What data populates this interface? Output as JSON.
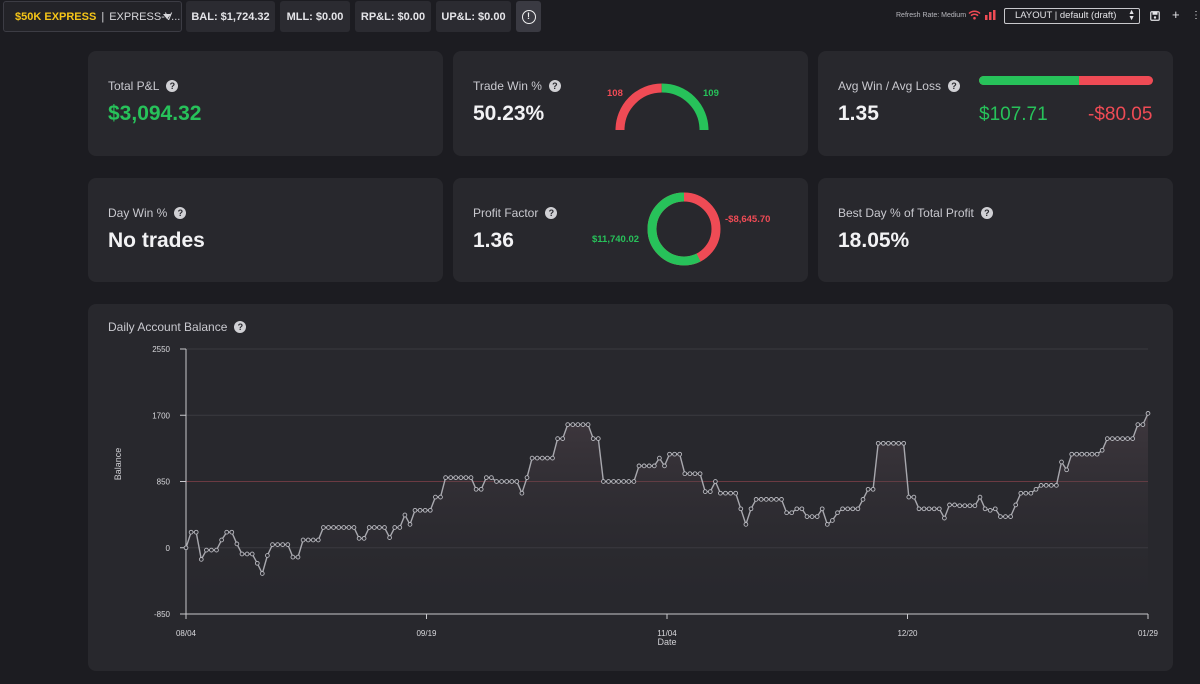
{
  "topbar": {
    "account_name": "$50K EXPRESS",
    "account_separator": "|",
    "account_id": "EXPRESS-V...",
    "bal": "BAL: $1,724.32",
    "mll": "MLL: $0.00",
    "rpl": "RP&L: $0.00",
    "upl": "UP&L: $0.00",
    "alert_glyph": "!",
    "refresh_rate": "Refresh Rate: Medium",
    "layout_value": "LAYOUT | default (draft)",
    "add_glyph": "+",
    "more_glyph": "⋮"
  },
  "cards": {
    "total_pnl": {
      "label": "Total P&L",
      "value": "$3,094.32"
    },
    "trade_win": {
      "label": "Trade Win %",
      "value": "50.23%",
      "losses": "108",
      "wins": "109",
      "win_fraction": 0.5023
    },
    "avg_win_loss": {
      "label": "Avg Win / Avg Loss",
      "value": "1.35",
      "avg_win": "$107.71",
      "avg_loss": "-$80.05",
      "win_fraction": 0.5736
    },
    "day_win": {
      "label": "Day Win %",
      "value": "No trades"
    },
    "profit_factor": {
      "label": "Profit Factor",
      "value": "1.36",
      "gross_profit": "$11,740.02",
      "gross_loss": "-$8,645.70",
      "profit_fraction": 0.5759
    },
    "best_day": {
      "label": "Best Day % of Total Profit",
      "value": "18.05%"
    }
  },
  "help_glyph": "?",
  "colors": {
    "green": "#27c25a",
    "red": "#ef4b55",
    "card": "#28282d",
    "accent_yellow": "#f5c518"
  },
  "chart_data": {
    "type": "line",
    "title": "Daily Account Balance",
    "xlabel": "Date",
    "ylabel": "Balance",
    "ylim": [
      -850,
      2550
    ],
    "yticks": [
      "2550",
      "1700",
      "850",
      "0",
      "-850"
    ],
    "xticks": [
      "08/04",
      "09/19",
      "11/04",
      "12/20",
      "01/29"
    ],
    "reference_line": 850,
    "series": [
      {
        "name": "Balance",
        "values": [
          0,
          200,
          200,
          -150,
          -30,
          -30,
          -30,
          100,
          200,
          200,
          50,
          -80,
          -80,
          -80,
          -200,
          -330,
          -100,
          40,
          40,
          40,
          40,
          -120,
          -120,
          100,
          100,
          100,
          100,
          260,
          260,
          260,
          260,
          260,
          260,
          260,
          120,
          120,
          260,
          260,
          260,
          260,
          130,
          260,
          260,
          420,
          300,
          480,
          480,
          480,
          480,
          650,
          650,
          900,
          900,
          900,
          900,
          900,
          900,
          750,
          750,
          900,
          900,
          850,
          850,
          850,
          850,
          850,
          700,
          900,
          1150,
          1150,
          1150,
          1150,
          1150,
          1400,
          1400,
          1580,
          1580,
          1580,
          1580,
          1580,
          1400,
          1400,
          850,
          850,
          850,
          850,
          850,
          850,
          850,
          1050,
          1050,
          1050,
          1050,
          1150,
          1050,
          1200,
          1200,
          1200,
          950,
          950,
          950,
          950,
          720,
          720,
          850,
          700,
          700,
          700,
          700,
          500,
          300,
          500,
          620,
          620,
          620,
          620,
          620,
          620,
          450,
          450,
          500,
          500,
          400,
          400,
          400,
          500,
          300,
          350,
          450,
          500,
          500,
          500,
          500,
          620,
          750,
          750,
          1340,
          1340,
          1340,
          1340,
          1340,
          1340,
          650,
          650,
          500,
          500,
          500,
          500,
          500,
          380,
          550,
          550,
          540,
          540,
          540,
          540,
          650,
          500,
          480,
          500,
          400,
          400,
          400,
          550,
          700,
          700,
          700,
          750,
          800,
          800,
          800,
          800,
          1100,
          1000,
          1200,
          1200,
          1200,
          1200,
          1200,
          1200,
          1250,
          1400,
          1400,
          1400,
          1400,
          1400,
          1400,
          1580,
          1580,
          1724
        ]
      }
    ]
  }
}
